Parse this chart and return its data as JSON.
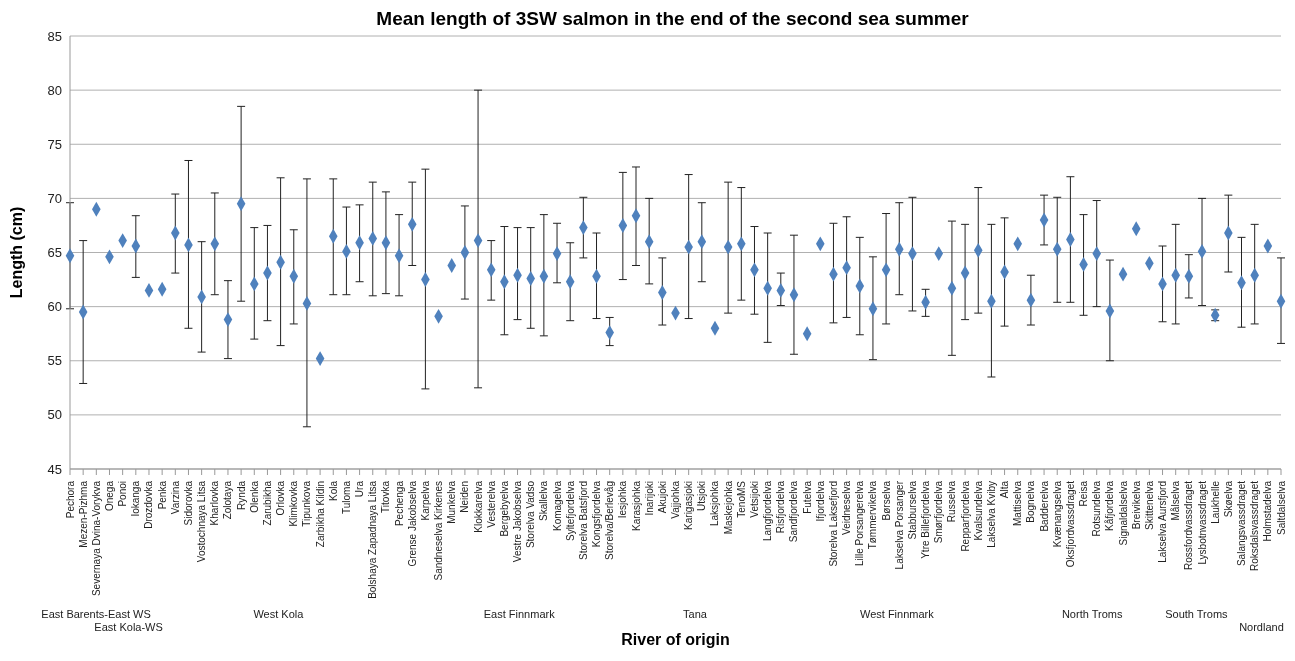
{
  "chart_data": {
    "type": "scatter",
    "title": "Mean length of 3SW salmon in the end of the second sea summer",
    "xlabel": "River of origin",
    "ylabel": "Length (cm)",
    "categories": [
      "Pechora",
      "Mezen-Pizhma",
      "Severnaya Dvina-Vorykva",
      "Onega",
      "Ponoi",
      "Iokanga",
      "Drozdovka",
      "Penka",
      "Varzina",
      "Sidorovka",
      "Vostochnaya Litsa",
      "Kharlovka",
      "Zolotaya",
      "Rynda",
      "Olenka",
      "Zarubikha",
      "Orlovka",
      "Klimkovka",
      "Tipunkova",
      "Zarbikha Kildin",
      "Kola",
      "Tuloma",
      "Ura",
      "Bolshaya Zapadnaya Litsa",
      "Titovka",
      "Pechenga",
      "Grense Jakobselva",
      "Karpelva",
      "Sandneselva Kirkenes",
      "Munkelva",
      "Neiden",
      "Klokkarelva",
      "Vesterelva",
      "Bergebyelva",
      "Vestre Jakobselva",
      "Storelva Vadso",
      "Skallelva",
      "Komagelva",
      "Syltefjordelva",
      "Storelva Batsfjord",
      "Kongsfjordelva",
      "Storelva/Berlevåg",
      "Iesjohka",
      "Karasjohka",
      "Inarijoki",
      "Akujoki",
      "Vajjohka",
      "Karigasjoki",
      "Utsjoki",
      "Laksjohka",
      "Maskejohka",
      "TenoMS",
      "Vetsijoki",
      "Langfjordelva",
      "Risfjordelva",
      "Sandfjordelva",
      "Futelva",
      "Ifjordelva",
      "Storelva Laksefjord",
      "Veidneselva",
      "Lille Porsangerelva",
      "Tømmervikelva",
      "Børselva",
      "Lakselva Porsanger",
      "Stabburselva",
      "Ytre Billefjordelva",
      "Smørfjordelva",
      "Russelva",
      "Repparfjordelva",
      "Kvalsundelva",
      "Lakselva Kviby",
      "Alta",
      "Mattiselva",
      "Bognelva",
      "Badderelva",
      "Kvænangselva",
      "Oksfjordvassdraget",
      "Reisa",
      "Rotsundelva",
      "Kåfjordelva",
      "Signaldalselva",
      "Breivikelva",
      "Skittenelva",
      "Lakselva Aursfjord",
      "Målselva",
      "Rossfordvassdraget",
      "Lysbotnvassdraget",
      "Laukhelle",
      "Skøelva",
      "Salangsvassdraget",
      "Roksdalsvassdraget",
      "Holmstadelva",
      "Saltdalselva"
    ],
    "values": [
      64.7,
      59.5,
      69.0,
      64.6,
      66.1,
      65.6,
      61.5,
      61.6,
      66.8,
      65.7,
      60.9,
      65.8,
      58.8,
      69.5,
      62.1,
      63.1,
      64.1,
      62.8,
      60.3,
      55.2,
      66.5,
      65.1,
      65.9,
      66.3,
      65.9,
      64.7,
      67.6,
      62.5,
      59.1,
      63.8,
      65.0,
      66.1,
      63.4,
      62.3,
      62.9,
      62.6,
      62.8,
      64.9,
      62.3,
      67.3,
      62.8,
      57.6,
      67.5,
      68.4,
      66.0,
      61.3,
      59.4,
      65.5,
      66.0,
      58.0,
      65.5,
      65.8,
      63.4,
      61.7,
      61.5,
      61.1,
      57.5,
      65.8,
      63.0,
      63.6,
      61.9,
      59.8,
      63.4,
      65.3,
      64.9,
      60.4,
      64.9,
      61.7,
      63.1,
      65.2,
      60.5,
      63.2,
      65.8,
      60.6,
      68.0,
      65.3,
      66.2,
      63.9,
      64.9,
      59.6,
      63.0,
      67.2,
      64.0,
      62.1,
      62.9,
      62.8,
      65.1,
      59.2,
      66.8,
      62.2,
      62.9,
      65.6,
      60.5
    ],
    "errors": [
      [
        59.8,
        69.6
      ],
      [
        52.9,
        66.1
      ],
      null,
      null,
      null,
      [
        62.7,
        68.4
      ],
      null,
      null,
      [
        63.1,
        70.4
      ],
      [
        58.0,
        73.5
      ],
      [
        55.8,
        66.0
      ],
      [
        61.1,
        70.5
      ],
      [
        55.2,
        62.4
      ],
      [
        60.5,
        78.5
      ],
      [
        57.0,
        67.3
      ],
      [
        58.7,
        67.5
      ],
      [
        56.4,
        71.9
      ],
      [
        58.4,
        67.1
      ],
      [
        48.9,
        71.8
      ],
      null,
      [
        61.1,
        71.8
      ],
      [
        61.1,
        69.2
      ],
      [
        62.3,
        69.4
      ],
      [
        61.0,
        71.5
      ],
      [
        61.2,
        70.6
      ],
      [
        61.0,
        68.5
      ],
      [
        63.8,
        71.5
      ],
      [
        52.4,
        72.7
      ],
      null,
      null,
      [
        60.7,
        69.3
      ],
      [
        52.5,
        80.0
      ],
      [
        60.6,
        66.1
      ],
      [
        57.4,
        67.4
      ],
      [
        58.8,
        67.3
      ],
      [
        58.0,
        67.3
      ],
      [
        57.3,
        68.5
      ],
      [
        62.2,
        67.7
      ],
      [
        58.7,
        65.9
      ],
      [
        64.5,
        70.1
      ],
      [
        58.9,
        66.8
      ],
      [
        56.4,
        59.0
      ],
      [
        62.5,
        72.4
      ],
      [
        63.8,
        72.9
      ],
      [
        62.1,
        70.0
      ],
      [
        58.3,
        64.5
      ],
      null,
      [
        58.9,
        72.2
      ],
      [
        62.3,
        69.6
      ],
      null,
      [
        59.4,
        71.5
      ],
      [
        60.6,
        71.0
      ],
      [
        59.3,
        67.4
      ],
      [
        56.7,
        66.8
      ],
      [
        60.1,
        63.1
      ],
      [
        55.6,
        66.6
      ],
      null,
      null,
      [
        58.5,
        67.7
      ],
      [
        59.0,
        68.3
      ],
      [
        57.4,
        66.4
      ],
      [
        55.1,
        64.6
      ],
      [
        58.4,
        68.6
      ],
      [
        61.1,
        69.6
      ],
      [
        59.6,
        70.1
      ],
      [
        59.1,
        61.6
      ],
      null,
      [
        55.5,
        67.9
      ],
      [
        58.8,
        67.6
      ],
      [
        59.4,
        71.0
      ],
      [
        53.5,
        67.6
      ],
      [
        58.2,
        68.2
      ],
      null,
      [
        58.3,
        62.9
      ],
      [
        65.7,
        70.3
      ],
      [
        60.4,
        70.1
      ],
      [
        60.4,
        72.0
      ],
      [
        59.2,
        68.5
      ],
      [
        60.0,
        69.8
      ],
      [
        55.0,
        64.3
      ],
      null,
      null,
      null,
      [
        58.6,
        65.6
      ],
      [
        58.4,
        67.6
      ],
      [
        60.8,
        64.8
      ],
      [
        60.1,
        70.0
      ],
      [
        58.7,
        59.7
      ],
      [
        63.2,
        70.3
      ],
      [
        58.1,
        66.4
      ],
      [
        58.4,
        67.6
      ],
      null,
      [
        56.6,
        64.5
      ]
    ],
    "color": "#4f81bd",
    "marker": "diamond",
    "ylim": [
      45,
      85
    ],
    "yticks": [
      45,
      50,
      55,
      60,
      65,
      70,
      75,
      80,
      85
    ],
    "grid": "y",
    "annotations": [
      "East Barents-East WS",
      "East Kola-WS",
      "West Kola",
      "East Finnmark",
      "Tana",
      "West Finnmark",
      "North Troms",
      "South Troms",
      "Nordland"
    ]
  }
}
